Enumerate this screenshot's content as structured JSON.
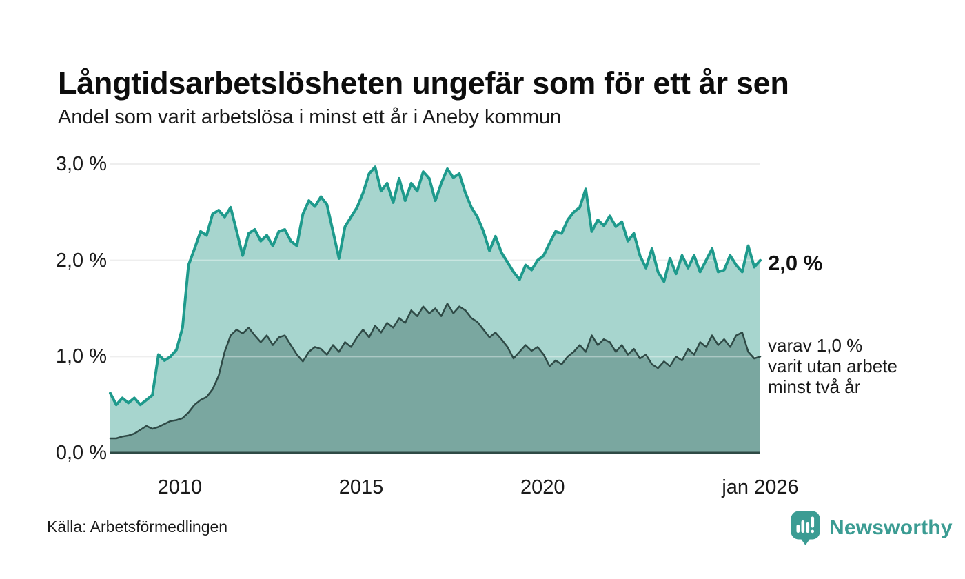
{
  "header": {
    "title": "Långtidsarbetslösheten ungefär som för ett år sen",
    "subtitle": "Andel som varit arbetslösa i minst ett år i Aneby kommun"
  },
  "chart_data": {
    "type": "area",
    "title": "Långtidsarbetslösheten ungefär som för ett år sen",
    "subtitle": "Andel som varit arbetslösa i minst ett år i Aneby kommun",
    "unit": "%",
    "x_start": 2008.083,
    "x_end": 2026.0,
    "x_interval": "2 months, evenly spaced",
    "ylim": [
      0,
      3.0
    ],
    "grid": true,
    "legend_position": "end-of-line labels, right side",
    "yticks": [
      {
        "value": 3.0,
        "label": "3,0 %"
      },
      {
        "value": 2.0,
        "label": "2,0 %"
      },
      {
        "value": 1.0,
        "label": "1,0 %"
      },
      {
        "value": 0.0,
        "label": "0,0 %"
      }
    ],
    "xticks": [
      {
        "value": 2010.0,
        "label": "2010"
      },
      {
        "value": 2015.0,
        "label": "2015"
      },
      {
        "value": 2020.0,
        "label": "2020"
      },
      {
        "value": 2026.0,
        "label": "jan 2026"
      }
    ],
    "series": [
      {
        "name": "Andel som varit arbetslösa i minst ett år",
        "key": "total",
        "fill": "#a7d5ce",
        "stroke": "#1e9a8c",
        "stroke_width": 4,
        "end_value": 2.0,
        "values": [
          0.62,
          0.5,
          0.57,
          0.52,
          0.57,
          0.5,
          0.55,
          0.6,
          1.02,
          0.96,
          1.0,
          1.07,
          1.3,
          1.95,
          2.12,
          2.3,
          2.26,
          2.48,
          2.52,
          2.45,
          2.55,
          2.3,
          2.05,
          2.28,
          2.32,
          2.2,
          2.26,
          2.15,
          2.3,
          2.32,
          2.2,
          2.15,
          2.48,
          2.62,
          2.56,
          2.66,
          2.58,
          2.3,
          2.02,
          2.35,
          2.45,
          2.55,
          2.7,
          2.9,
          2.97,
          2.72,
          2.8,
          2.6,
          2.85,
          2.62,
          2.8,
          2.72,
          2.92,
          2.85,
          2.62,
          2.8,
          2.95,
          2.86,
          2.9,
          2.7,
          2.55,
          2.45,
          2.3,
          2.1,
          2.25,
          2.08,
          1.98,
          1.88,
          1.8,
          1.95,
          1.9,
          2.0,
          2.05,
          2.18,
          2.3,
          2.28,
          2.42,
          2.5,
          2.55,
          2.74,
          2.3,
          2.42,
          2.36,
          2.46,
          2.35,
          2.4,
          2.2,
          2.28,
          2.05,
          1.92,
          2.12,
          1.88,
          1.78,
          2.02,
          1.86,
          2.05,
          1.92,
          2.05,
          1.88,
          2.0,
          2.12,
          1.88,
          1.9,
          2.05,
          1.95,
          1.88,
          2.15,
          1.93,
          2.0
        ]
      },
      {
        "name": "varav utan arbete minst två år",
        "key": "two_years",
        "fill": "#7aa7a0",
        "stroke": "#2f4a46",
        "stroke_width": 2.5,
        "end_value": 1.0,
        "values": [
          0.15,
          0.15,
          0.17,
          0.18,
          0.2,
          0.24,
          0.28,
          0.25,
          0.27,
          0.3,
          0.33,
          0.34,
          0.36,
          0.42,
          0.5,
          0.55,
          0.58,
          0.66,
          0.8,
          1.05,
          1.22,
          1.28,
          1.24,
          1.3,
          1.22,
          1.15,
          1.22,
          1.12,
          1.2,
          1.22,
          1.12,
          1.02,
          0.95,
          1.05,
          1.1,
          1.08,
          1.02,
          1.12,
          1.05,
          1.15,
          1.1,
          1.2,
          1.28,
          1.2,
          1.32,
          1.25,
          1.35,
          1.3,
          1.4,
          1.35,
          1.48,
          1.42,
          1.52,
          1.45,
          1.5,
          1.42,
          1.55,
          1.45,
          1.52,
          1.48,
          1.4,
          1.36,
          1.28,
          1.2,
          1.25,
          1.18,
          1.1,
          0.98,
          1.05,
          1.12,
          1.06,
          1.1,
          1.02,
          0.9,
          0.96,
          0.92,
          1.0,
          1.05,
          1.12,
          1.05,
          1.22,
          1.12,
          1.18,
          1.15,
          1.05,
          1.12,
          1.02,
          1.08,
          0.98,
          1.02,
          0.92,
          0.88,
          0.95,
          0.9,
          1.0,
          0.96,
          1.08,
          1.02,
          1.15,
          1.1,
          1.22,
          1.12,
          1.18,
          1.1,
          1.22,
          1.25,
          1.05,
          0.98,
          1.0
        ]
      }
    ],
    "end_labels": {
      "primary": "2,0 %",
      "secondary": "varav 1,0 %\nvarit utan arbete\nminst två år"
    }
  },
  "footer": {
    "source": "Källa: Arbetsförmedlingen",
    "brand": "Newsworthy"
  },
  "colors": {
    "accent_teal": "#1e9a8c",
    "fill_light": "#a7d5ce",
    "fill_dark": "#7aa7a0",
    "line_dark": "#2f4a46",
    "grid": "#e4e4e4",
    "baseline": "#2e4a45",
    "brand": "#3b9c93"
  }
}
